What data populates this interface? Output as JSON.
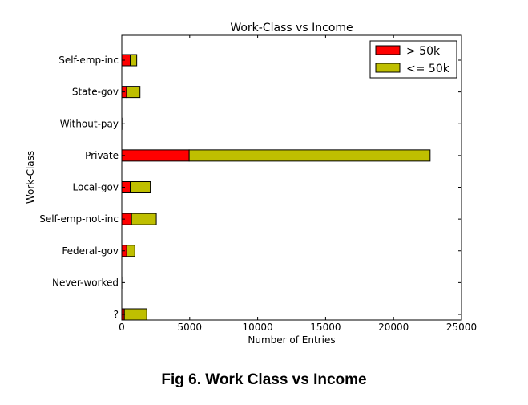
{
  "caption": "Fig 6. Work Class vs Income",
  "chart_data": {
    "type": "bar",
    "orientation": "horizontal",
    "stacked": true,
    "title": "Work-Class vs Income",
    "xlabel": "Number of Entries",
    "ylabel": "Work-Class",
    "xlim": [
      0,
      25000
    ],
    "xticks": [
      "0",
      "5000",
      "10000",
      "15000",
      "20000",
      "25000"
    ],
    "categories": [
      "?",
      "Never-worked",
      "Federal-gov",
      "Self-emp-not-inc",
      "Local-gov",
      "Private",
      "Without-pay",
      "State-gov",
      "Self-emp-inc"
    ],
    "series": [
      {
        "name": "> 50k",
        "color": "#ff0000",
        "values": [
          190,
          0,
          370,
          720,
          620,
          4960,
          0,
          350,
          620
        ]
      },
      {
        "name": "<= 50k",
        "color": "#bfbf00",
        "values": [
          1650,
          7,
          590,
          1820,
          1480,
          17730,
          14,
          990,
          480
        ]
      }
    ],
    "legend_position": "top-right",
    "grid": false
  }
}
